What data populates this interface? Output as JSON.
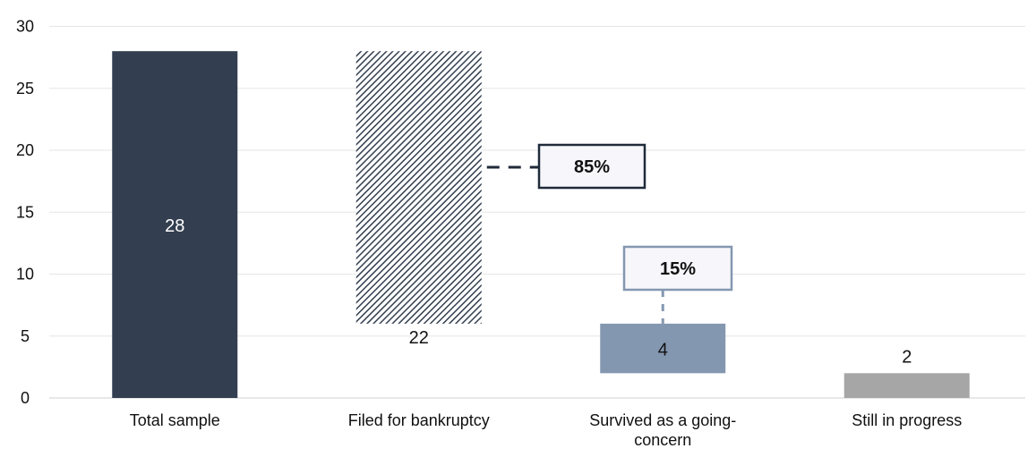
{
  "chart_data": {
    "type": "bar",
    "subtype": "waterfall",
    "title": "",
    "xlabel": "",
    "ylabel": "",
    "ylim": [
      0,
      30
    ],
    "yticks": [
      0,
      5,
      10,
      15,
      20,
      25,
      30
    ],
    "grid": true,
    "legend": "none",
    "categories": [
      "Total sample",
      "Filed for bankruptcy",
      "Survived as a going-concern",
      "Still in progress"
    ],
    "category_labels": [
      [
        "Total sample"
      ],
      [
        "Filed for bankruptcy"
      ],
      [
        "Survived as a going-",
        "concern"
      ],
      [
        "Still in progress"
      ]
    ],
    "bars": [
      {
        "category": "Total sample",
        "value": 28,
        "base": 0,
        "label": "28",
        "color": "#333f50",
        "pattern": "solid"
      },
      {
        "category": "Filed for bankruptcy",
        "value": 22,
        "base": 6,
        "label": "22",
        "color": "#333f50",
        "pattern": "diagonal-hatch"
      },
      {
        "category": "Survived as a going-concern",
        "value": 4,
        "base": 2,
        "label": "4",
        "color": "#8497b0",
        "pattern": "solid"
      },
      {
        "category": "Still in progress",
        "value": 2,
        "base": 0,
        "label": "2",
        "color": "#a6a6a6",
        "pattern": "solid"
      }
    ],
    "annotations": [
      {
        "text": "85%",
        "target": "Filed for bankruptcy",
        "border_color": "#1f2a3a"
      },
      {
        "text": "15%",
        "target": "Survived as a going-concern",
        "border_color": "#8497b0"
      }
    ]
  }
}
